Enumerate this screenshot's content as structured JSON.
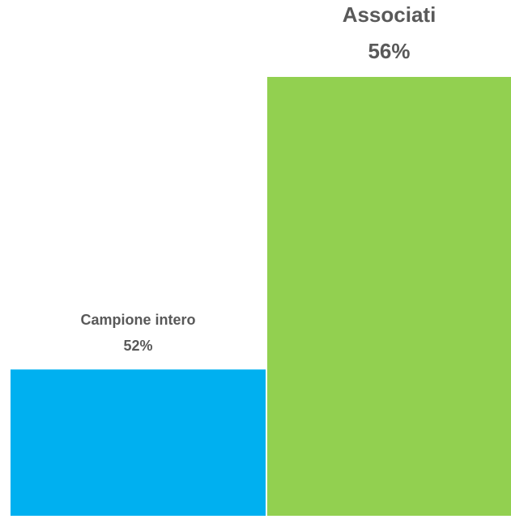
{
  "chart_data": {
    "type": "bar",
    "categories": [
      "Campione intero",
      "Associati"
    ],
    "values": [
      52,
      56
    ],
    "value_labels": [
      "52%",
      "56%"
    ],
    "colors": [
      "#00b0f0",
      "#92d050"
    ],
    "ylim": [
      50,
      56
    ]
  }
}
